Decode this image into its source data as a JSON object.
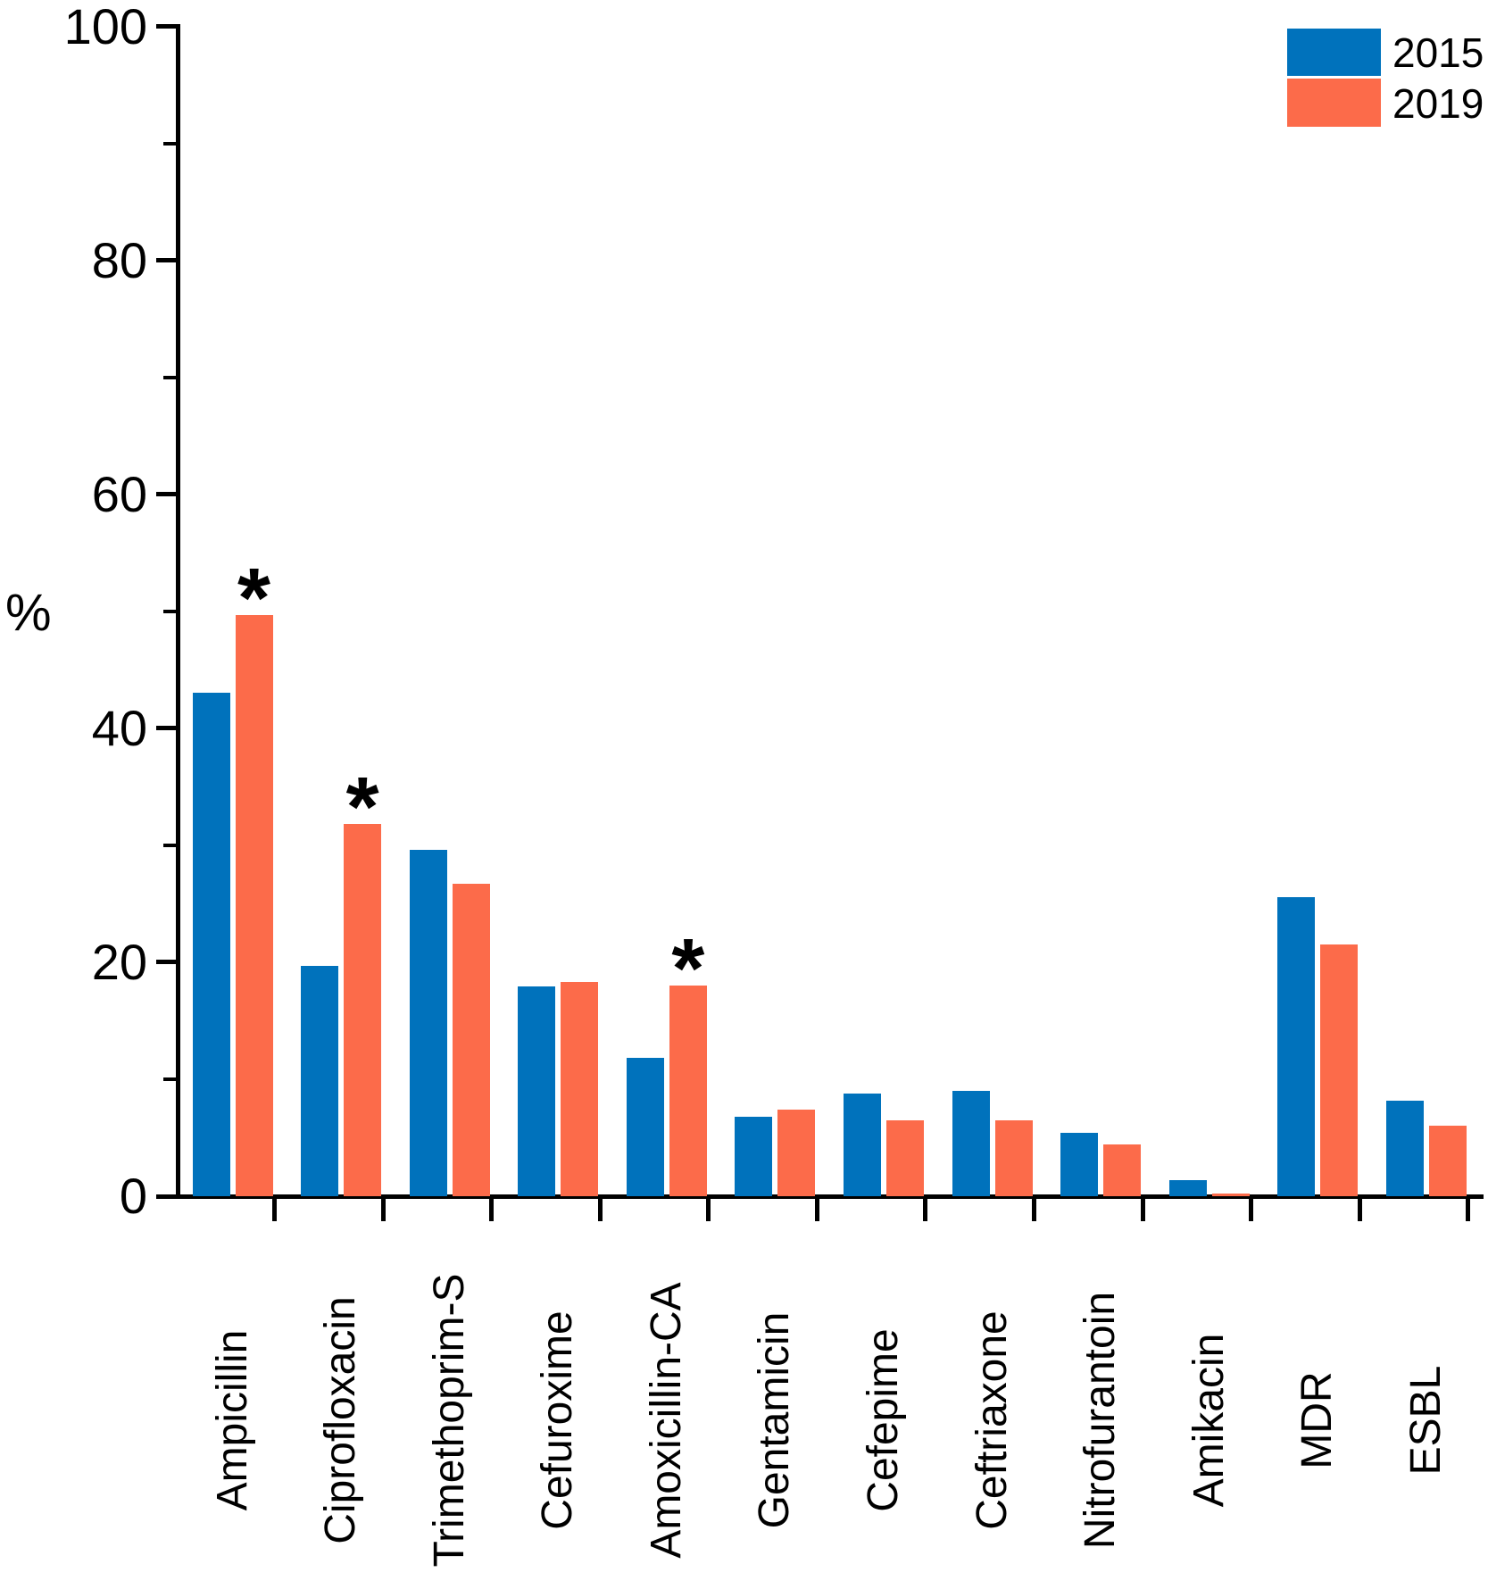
{
  "figure": {
    "background_color": "#ffffff",
    "text_color": "#000000"
  },
  "y_axis": {
    "label": "%",
    "major_ticks": [
      0,
      20,
      40,
      60,
      80,
      100
    ],
    "minor_ticks": [
      10,
      30,
      50,
      70,
      90
    ],
    "range": [
      0,
      100
    ]
  },
  "legend": {
    "position": "top-right",
    "items": [
      {
        "label": "2015",
        "color": "#0072BC"
      },
      {
        "label": "2019",
        "color": "#FC6B4A"
      }
    ]
  },
  "chart_data": {
    "type": "bar",
    "title": "",
    "xlabel": "",
    "ylabel": "%",
    "ylim": [
      0,
      100
    ],
    "grid": false,
    "legend_position": "top-right",
    "categories": [
      "Ampicillin",
      "Ciprofloxacin",
      "Trimethoprim-S",
      "Cefuroxime",
      "Amoxicillin-CA",
      "Gentamicin",
      "Cefepime",
      "Ceftriaxone",
      "Nitrofurantoin",
      "Amikacin",
      "MDR",
      "ESBL"
    ],
    "series": [
      {
        "name": "2015",
        "color": "#0072BC",
        "values": [
          43.0,
          19.7,
          29.6,
          17.9,
          11.8,
          6.8,
          8.8,
          9.0,
          5.4,
          1.4,
          25.6,
          8.2
        ]
      },
      {
        "name": "2019",
        "color": "#FC6B4A",
        "values": [
          49.7,
          31.8,
          26.7,
          18.3,
          18.0,
          7.4,
          6.5,
          6.5,
          4.4,
          0.2,
          21.5,
          6.0
        ]
      }
    ],
    "significance_asterisk_on_2019": [
      true,
      true,
      false,
      false,
      true,
      false,
      false,
      false,
      false,
      false,
      false,
      false
    ],
    "annotation_symbol": "*"
  }
}
